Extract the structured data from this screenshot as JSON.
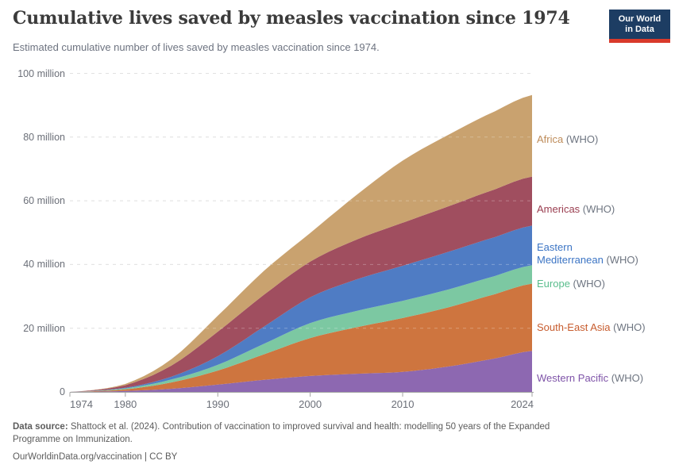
{
  "header": {
    "title": "Cumulative lives saved by measles vaccination since 1974",
    "subtitle": "Estimated cumulative number of lives saved by measles vaccination since 1974.",
    "logo": {
      "line1": "Our World",
      "line2": "in Data",
      "bg_color": "#1d3d63",
      "bar_color": "#d93a2b"
    }
  },
  "chart_data": {
    "type": "area",
    "stacked": true,
    "title": "Cumulative lives saved by measles vaccination since 1974",
    "unit": "lives saved (millions)",
    "x": [
      1974,
      1980,
      1985,
      1990,
      1995,
      2000,
      2005,
      2010,
      2015,
      2020,
      2024
    ],
    "x_ticks": [
      1974,
      1980,
      1990,
      2000,
      2010,
      2024
    ],
    "xlim": [
      1974,
      2024
    ],
    "ylim": [
      0,
      100
    ],
    "y_ticks": [
      {
        "value": 100,
        "label": "100 million"
      },
      {
        "value": 80,
        "label": "80 million"
      },
      {
        "value": 60,
        "label": "60 million"
      },
      {
        "value": 40,
        "label": "40 million"
      },
      {
        "value": 20,
        "label": "20 million"
      },
      {
        "value": 0,
        "label": "0"
      }
    ],
    "grid": "dashed horizontal",
    "legend_position": "right",
    "stacking_note": "series listed top-of-stack first; stacked bottom-to-top in reverse order",
    "series": [
      {
        "name": "Africa",
        "label_lines": [
          "Africa"
        ],
        "suffix": "(WHO)",
        "fill": "#C9A26F",
        "label_color": "#BE8C5A",
        "values": [
          0,
          0.4,
          2.0,
          5.0,
          7.5,
          9.0,
          14.0,
          19.5,
          22.5,
          24.5,
          25.6
        ]
      },
      {
        "name": "Americas",
        "label_lines": [
          "Americas"
        ],
        "suffix": "(WHO)",
        "fill": "#A04E5F",
        "label_color": "#9A3E50",
        "values": [
          0,
          0.8,
          3.5,
          7.7,
          10.0,
          11.2,
          12.5,
          13.5,
          14.3,
          15.0,
          15.4
        ]
      },
      {
        "name": "Eastern Mediterranean",
        "label_lines": [
          "Eastern",
          "Mediterranean"
        ],
        "suffix": "(WHO)",
        "fill": "#4F7CC4",
        "label_color": "#3B74C4",
        "values": [
          0,
          0.2,
          0.9,
          2.7,
          5.4,
          8.1,
          9.9,
          11.0,
          11.8,
          12.2,
          12.4
        ]
      },
      {
        "name": "Europe",
        "label_lines": [
          "Europe"
        ],
        "suffix": "(WHO)",
        "fill": "#7CC8A2",
        "label_color": "#59BD8C",
        "values": [
          0,
          0.3,
          0.9,
          1.8,
          3.3,
          4.7,
          5.1,
          5.4,
          5.6,
          5.7,
          5.8
        ]
      },
      {
        "name": "South-East Asia",
        "label_lines": [
          "South-East Asia"
        ],
        "suffix": "(WHO)",
        "fill": "#CE753F",
        "label_color": "#C75C2E",
        "values": [
          0,
          0.5,
          2.0,
          4.4,
          8.0,
          11.9,
          14.6,
          16.9,
          18.6,
          20.2,
          21.1
        ]
      },
      {
        "name": "Western Pacific",
        "label_lines": [
          "Western Pacific"
        ],
        "suffix": "(WHO)",
        "fill": "#8D68B1",
        "label_color": "#7E53A8",
        "values": [
          0,
          0.3,
          1.0,
          2.3,
          3.8,
          5.0,
          5.7,
          6.3,
          8.0,
          10.5,
          12.9
        ]
      }
    ]
  },
  "footer": {
    "source_label": "Data source:",
    "source_line1_rest": " Shattock et al. (2024). Contribution of vaccination to improved survival and health: modelling 50 years of the Expanded",
    "source_line2": "Programme on Immunization.",
    "link_line": "OurWorldinData.org/vaccination | CC BY"
  }
}
